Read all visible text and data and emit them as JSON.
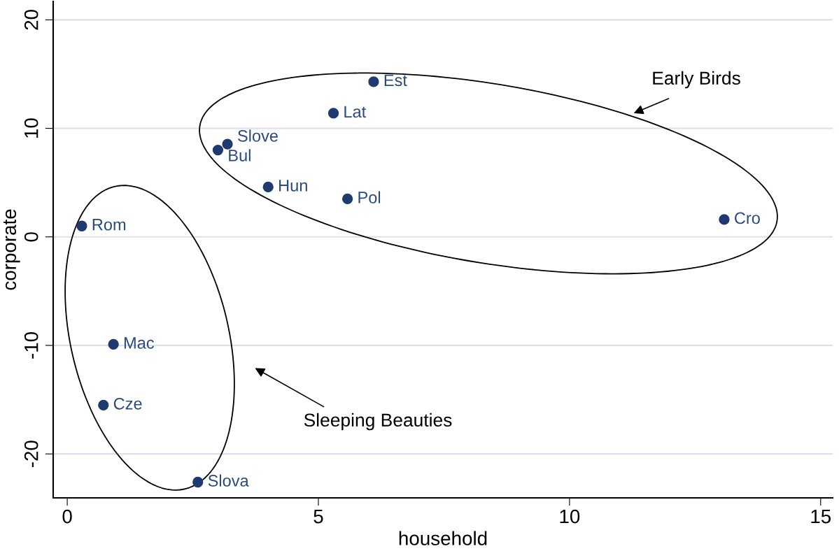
{
  "chart_data": {
    "type": "scatter",
    "xlabel": "household",
    "ylabel": "corporate",
    "x": [
      6.1,
      5.3,
      3.19,
      3.0,
      4.0,
      5.58,
      13.08,
      0.29,
      0.92,
      0.72,
      2.6
    ],
    "series": [
      {
        "color": "#1f3a6e",
        "values": [
          14.3,
          11.4,
          8.55,
          8.0,
          4.6,
          3.5,
          1.6,
          1.0,
          -9.9,
          -15.5,
          -22.6
        ]
      }
    ],
    "annotations": [
      {
        "text": "Est",
        "x": 6.1,
        "y": 14.3
      },
      {
        "text": "Lat",
        "x": 5.3,
        "y": 11.4
      },
      {
        "text": "Slove",
        "x": 3.19,
        "y": 8.55
      },
      {
        "text": "Bul",
        "x": 3.0,
        "y": 8.0
      },
      {
        "text": "Hun",
        "x": 4.0,
        "y": 4.6
      },
      {
        "text": "Pol",
        "x": 5.58,
        "y": 3.5
      },
      {
        "text": "Cro",
        "x": 13.08,
        "y": 1.6
      },
      {
        "text": "Rom",
        "x": 0.29,
        "y": 1.0
      },
      {
        "text": "Mac",
        "x": 0.92,
        "y": -9.9
      },
      {
        "text": "Cze",
        "x": 0.72,
        "y": -15.5
      },
      {
        "text": "Slova",
        "x": 2.6,
        "y": -22.6
      },
      "Early Birds",
      "Sleeping Beauties"
    ],
    "xlim": [
      -0.28,
      15.24
    ],
    "ylim": [
      -24.05,
      21.7
    ],
    "xticks": [
      0,
      5,
      10,
      15
    ],
    "yticks": [
      -20,
      -10,
      0,
      10,
      20
    ],
    "grid": "y",
    "marker": "circle"
  }
}
